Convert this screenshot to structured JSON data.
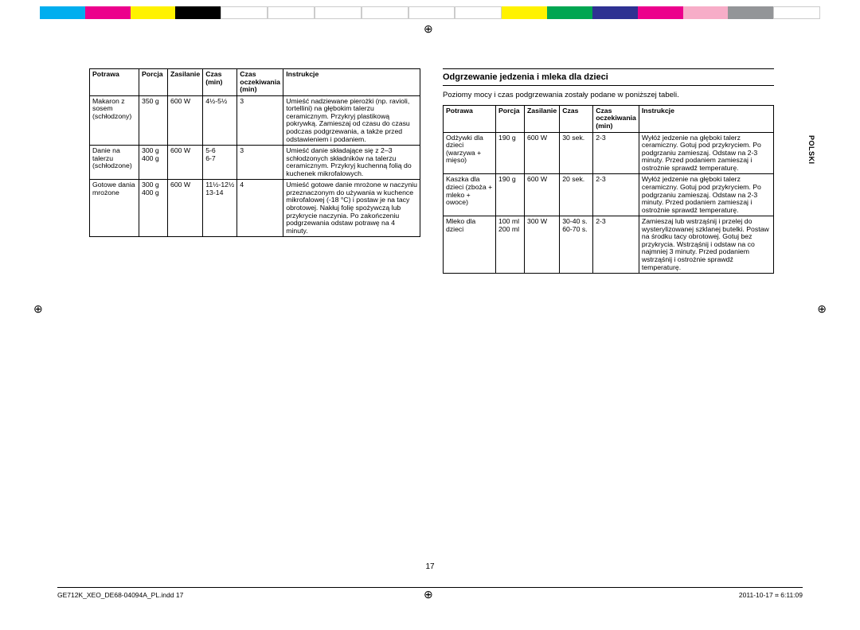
{
  "colorbar": [
    "#00aeef",
    "#ec008c",
    "#fff200",
    "#000000",
    "#ffffff",
    "#ffffff",
    "#ffffff",
    "#ffffff",
    "#ffffff",
    "#ffffff",
    "#fff200",
    "#00a651",
    "#2e3192",
    "#ec008c",
    "#f7adc8",
    "#939598",
    "#ffffff"
  ],
  "leftTable": {
    "headers": [
      "Potrawa",
      "Porcja",
      "Zasilanie",
      "Czas (min)",
      "Czas oczekiwania (min)",
      "Instrukcje"
    ],
    "rows": [
      [
        "Makaron z sosem (schłodzony)",
        "350 g",
        "600 W",
        "4½-5½",
        "3",
        "Umieść nadziewane pierożki (np. ravioli, tortellini) na głębokim talerzu ceramicznym. Przykryj plastikową pokrywką. Zamieszaj od czasu do czasu podczas podgrzewania, a także przed odstawieniem i podaniem."
      ],
      [
        "Danie na talerzu (schłodzone)",
        "300 g\n400 g",
        "600 W",
        "5-6\n6-7",
        "3",
        "Umieść danie składające się z 2–3 schłodzonych składników na talerzu ceramicznym. Przykryj kuchenną folią do kuchenek mikrofalowych."
      ],
      [
        "Gotowe dania mrożone",
        "300 g\n400 g",
        "600 W",
        "11½-12½\n13-14",
        "4",
        "Umieść gotowe danie mrożone w naczyniu przeznaczonym do używania w kuchence mikrofalowej (-18 °C) i postaw je na tacy obrotowej. Nakłuj folię spożywczą lub przykrycie naczynia. Po zakończeniu podgrzewania odstaw potrawę na 4 minuty."
      ]
    ]
  },
  "sectionTitle": "Odgrzewanie jedzenia i mleka dla dzieci",
  "intro": "Poziomy mocy i czas podgrzewania zostały podane w poniższej tabeli.",
  "rightTable": {
    "headers": [
      "Potrawa",
      "Porcja",
      "Zasilanie",
      "Czas",
      "Czas oczekiwania (min)",
      "Instrukcje"
    ],
    "rows": [
      [
        "Odżywki dla dzieci (warzywa + mięso)",
        "190 g",
        "600 W",
        "30 sek.",
        "2-3",
        "Wyłóż jedzenie na głęboki talerz ceramiczny. Gotuj pod przykryciem. Po podgrzaniu zamieszaj. Odstaw na 2-3 minuty. Przed podaniem zamieszaj i ostrożnie sprawdź temperaturę."
      ],
      [
        "Kaszka dla dzieci (zboża + mleko + owoce)",
        "190 g",
        "600 W",
        "20 sek.",
        "2-3",
        "Wyłóż jedzenie na głęboki talerz ceramiczny. Gotuj pod przykryciem. Po podgrzaniu zamieszaj. Odstaw na 2-3 minuty. Przed podaniem zamieszaj i ostrożnie sprawdź temperaturę."
      ],
      [
        "Mleko dla dzieci",
        "100 ml\n200 ml",
        "300 W",
        "30-40 s.\n60-70 s.",
        "2-3",
        "Zamieszaj lub wstrząśnij i przelej do wysterylizowanej szklanej butelki. Postaw na środku tacy obrotowej. Gotuj bez przykrycia. Wstrząśnij i odstaw na co najmniej 3 minuty. Przed podaniem wstrząśnij i ostrożnie sprawdź temperaturę."
      ]
    ]
  },
  "sideTab": "POLSKI",
  "pageNum": "17",
  "footerLeft": "GE712K_XEO_DE68-04094A_PL.indd   17",
  "footerRight": "2011-10-17   ⌗ 6:11:09"
}
